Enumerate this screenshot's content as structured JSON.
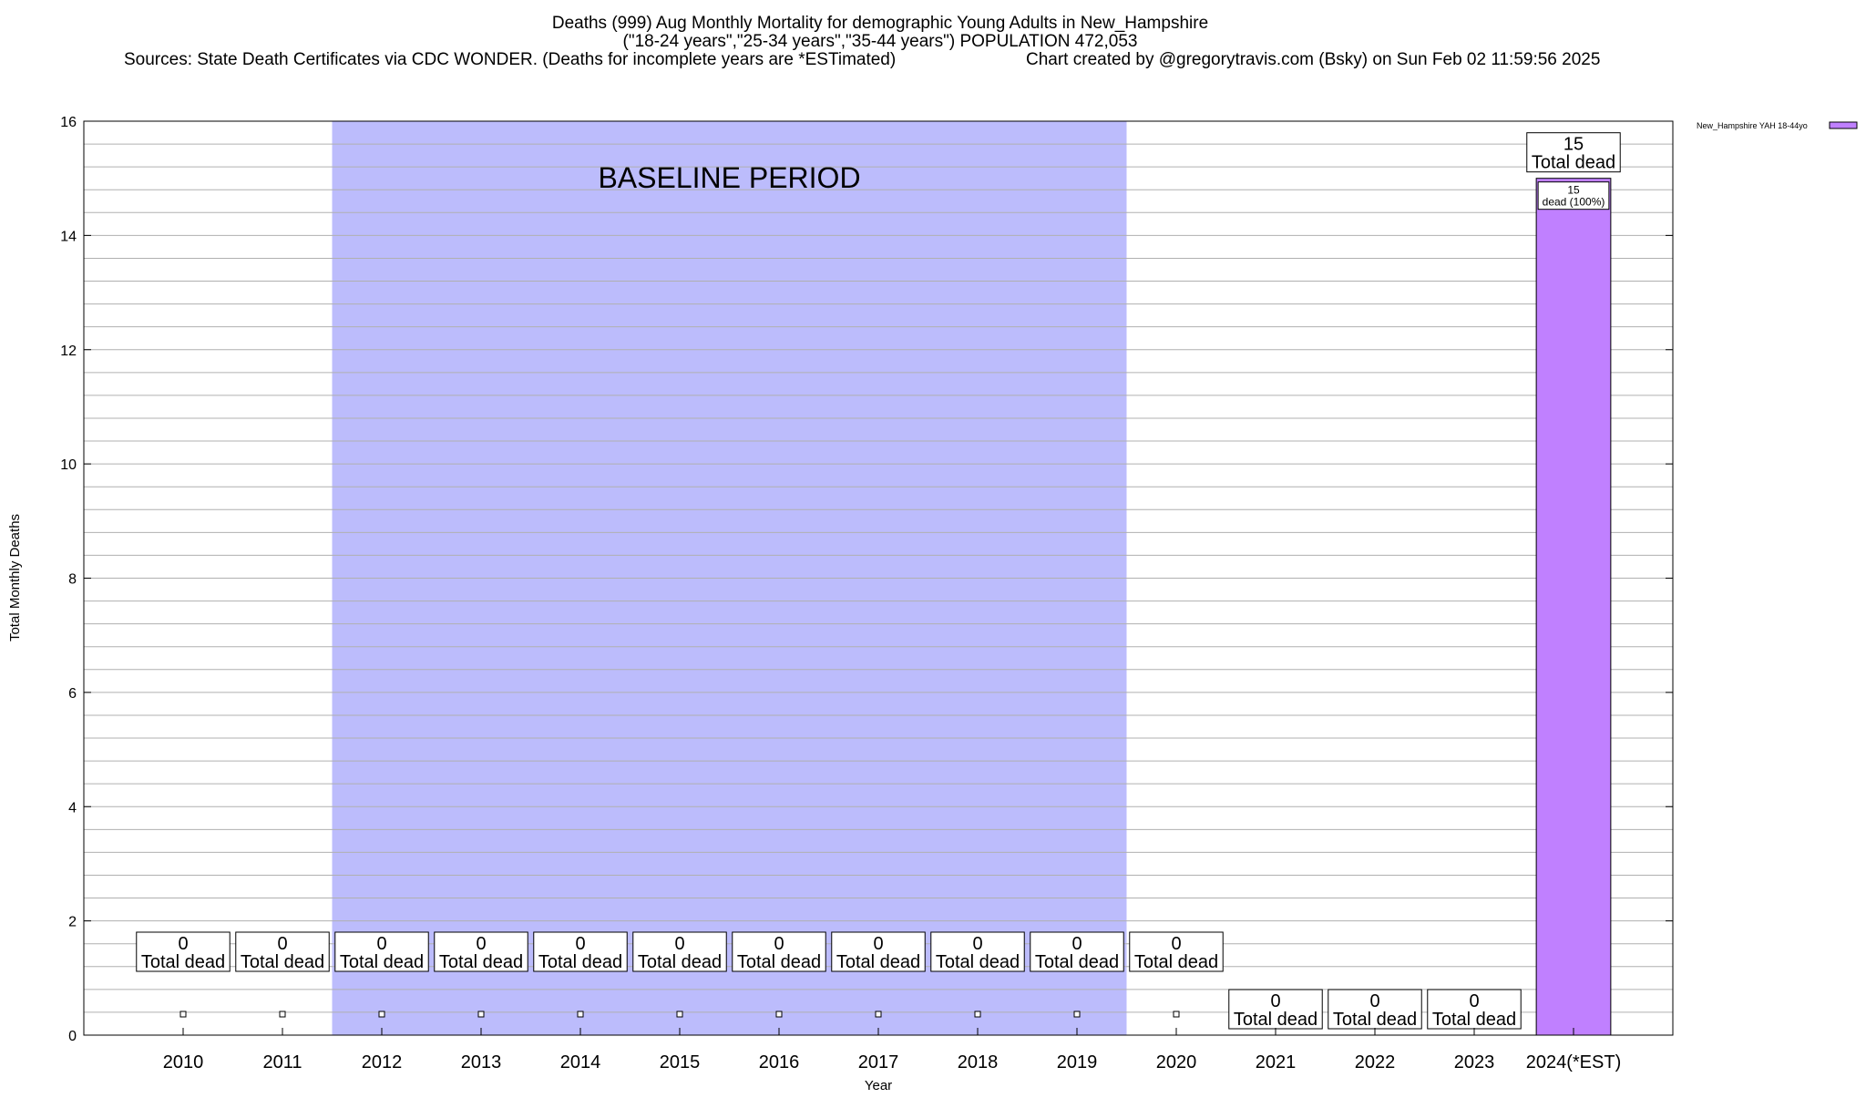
{
  "chart_data": {
    "type": "bar",
    "title_lines": [
      "Deaths (999) Aug Monthly Mortality for demographic Young Adults in New_Hampshire",
      "(\"18-24 years\",\"25-34 years\",\"35-44 years\") POPULATION 472,053"
    ],
    "sources_text": "Sources: State Death Certificates via CDC WONDER. (Deaths for incomplete years are *ESTimated)",
    "credit_text": "Chart created by @gregorytravis.com (Bsky) on Sun Feb 02 11:59:56 2025",
    "xlabel": "Year",
    "ylabel": "Total Monthly Deaths",
    "categories": [
      "2010",
      "2011",
      "2012",
      "2013",
      "2014",
      "2015",
      "2016",
      "2017",
      "2018",
      "2019",
      "2020",
      "2021",
      "2022",
      "2023",
      "2024(*EST)"
    ],
    "series": [
      {
        "name": "New_Hampshire YAH 18-44yo",
        "color": "#c080ff",
        "values": [
          0,
          0,
          0,
          0,
          0,
          0,
          0,
          0,
          0,
          0,
          0,
          0,
          0,
          0,
          15
        ]
      }
    ],
    "total_label_values": [
      "0",
      "0",
      "0",
      "0",
      "0",
      "0",
      "0",
      "0",
      "0",
      "0",
      "0",
      "0",
      "0",
      "0",
      "15"
    ],
    "total_label_text": "Total dead",
    "bar_labels": [
      {
        "category": "2024(*EST)",
        "value": "15",
        "text": "dead (100%)"
      }
    ],
    "ylim": [
      0,
      16
    ],
    "yticks": [
      0,
      2,
      4,
      6,
      8,
      10,
      12,
      14,
      16
    ],
    "minor_grid_step": 0.4,
    "grid": true,
    "legend_position": "top-right",
    "baseline_period": {
      "label": "BASELINE PERIOD",
      "start": "2012",
      "end": "2019",
      "color": "#bcbcfc"
    }
  }
}
